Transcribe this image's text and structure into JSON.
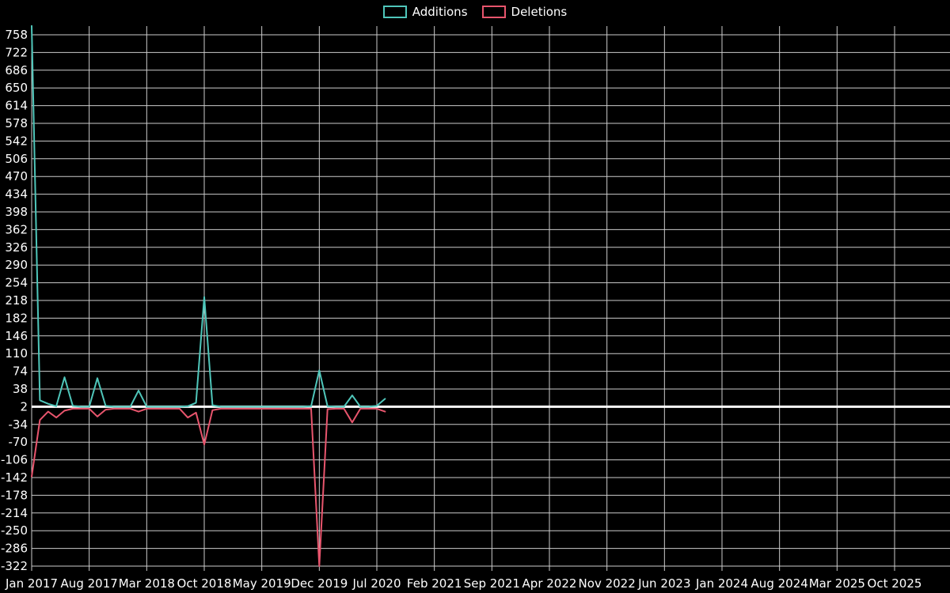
{
  "page": {
    "background": "#000000"
  },
  "chart_data": {
    "type": "line",
    "title": "",
    "xlabel": "",
    "ylabel": "",
    "grid": true,
    "grid_color": "#cccccc",
    "text_color": "#ffffff",
    "baseline_value": 2,
    "baseline_color": "#ffffff",
    "legend_position": "top-center",
    "y_ticks": [
      758,
      722,
      686,
      650,
      614,
      578,
      542,
      506,
      470,
      434,
      398,
      362,
      326,
      290,
      254,
      218,
      182,
      146,
      110,
      74,
      38,
      2,
      -34,
      -70,
      -106,
      -142,
      -178,
      -214,
      -250,
      -286,
      -322
    ],
    "x_tick_labels": [
      "Jan 2017",
      "Aug 2017",
      "Mar 2018",
      "Oct 2018",
      "May 2019",
      "Dec 2019",
      "Jul 2020",
      "Feb 2021",
      "Sep 2021",
      "Apr 2022",
      "Nov 2022",
      "Jun 2023",
      "Jan 2024",
      "Aug 2024",
      "Mar 2025",
      "Oct 2025"
    ],
    "x_tick_month_indices": [
      0,
      7,
      14,
      21,
      28,
      35,
      42,
      49,
      56,
      63,
      70,
      77,
      84,
      91,
      98,
      105
    ],
    "x_month_range": [
      0,
      105
    ],
    "x_start_month": "Jan 2017",
    "x_months": [
      0,
      1,
      2,
      3,
      4,
      5,
      6,
      7,
      8,
      9,
      10,
      11,
      12,
      13,
      14,
      15,
      16,
      17,
      18,
      19,
      20,
      21,
      22,
      23,
      24,
      25,
      26,
      27,
      28,
      29,
      30,
      31,
      32,
      33,
      34,
      35,
      36,
      37,
      38,
      39,
      40,
      41,
      42,
      43
    ],
    "series": [
      {
        "name": "Additions",
        "color": "#4fc6ba",
        "values": [
          776,
          15,
          8,
          3,
          62,
          4,
          2,
          2,
          60,
          4,
          2,
          2,
          2,
          35,
          2,
          2,
          2,
          2,
          2,
          3,
          10,
          225,
          5,
          2,
          2,
          2,
          2,
          2,
          2,
          2,
          2,
          2,
          2,
          2,
          3,
          76,
          3,
          2,
          2,
          25,
          2,
          2,
          4,
          18
        ]
      },
      {
        "name": "Deletions",
        "color": "#e8556d",
        "values": [
          -140,
          -25,
          -8,
          -20,
          -6,
          -2,
          -2,
          -2,
          -18,
          -4,
          -2,
          -2,
          -2,
          -8,
          -2,
          -2,
          -2,
          -2,
          -2,
          -20,
          -10,
          -75,
          -5,
          -2,
          -2,
          -2,
          -2,
          -2,
          -2,
          -2,
          -2,
          -2,
          -2,
          -2,
          -2,
          -322,
          -3,
          -2,
          -2,
          -30,
          -2,
          -2,
          -2,
          -8
        ]
      }
    ]
  }
}
